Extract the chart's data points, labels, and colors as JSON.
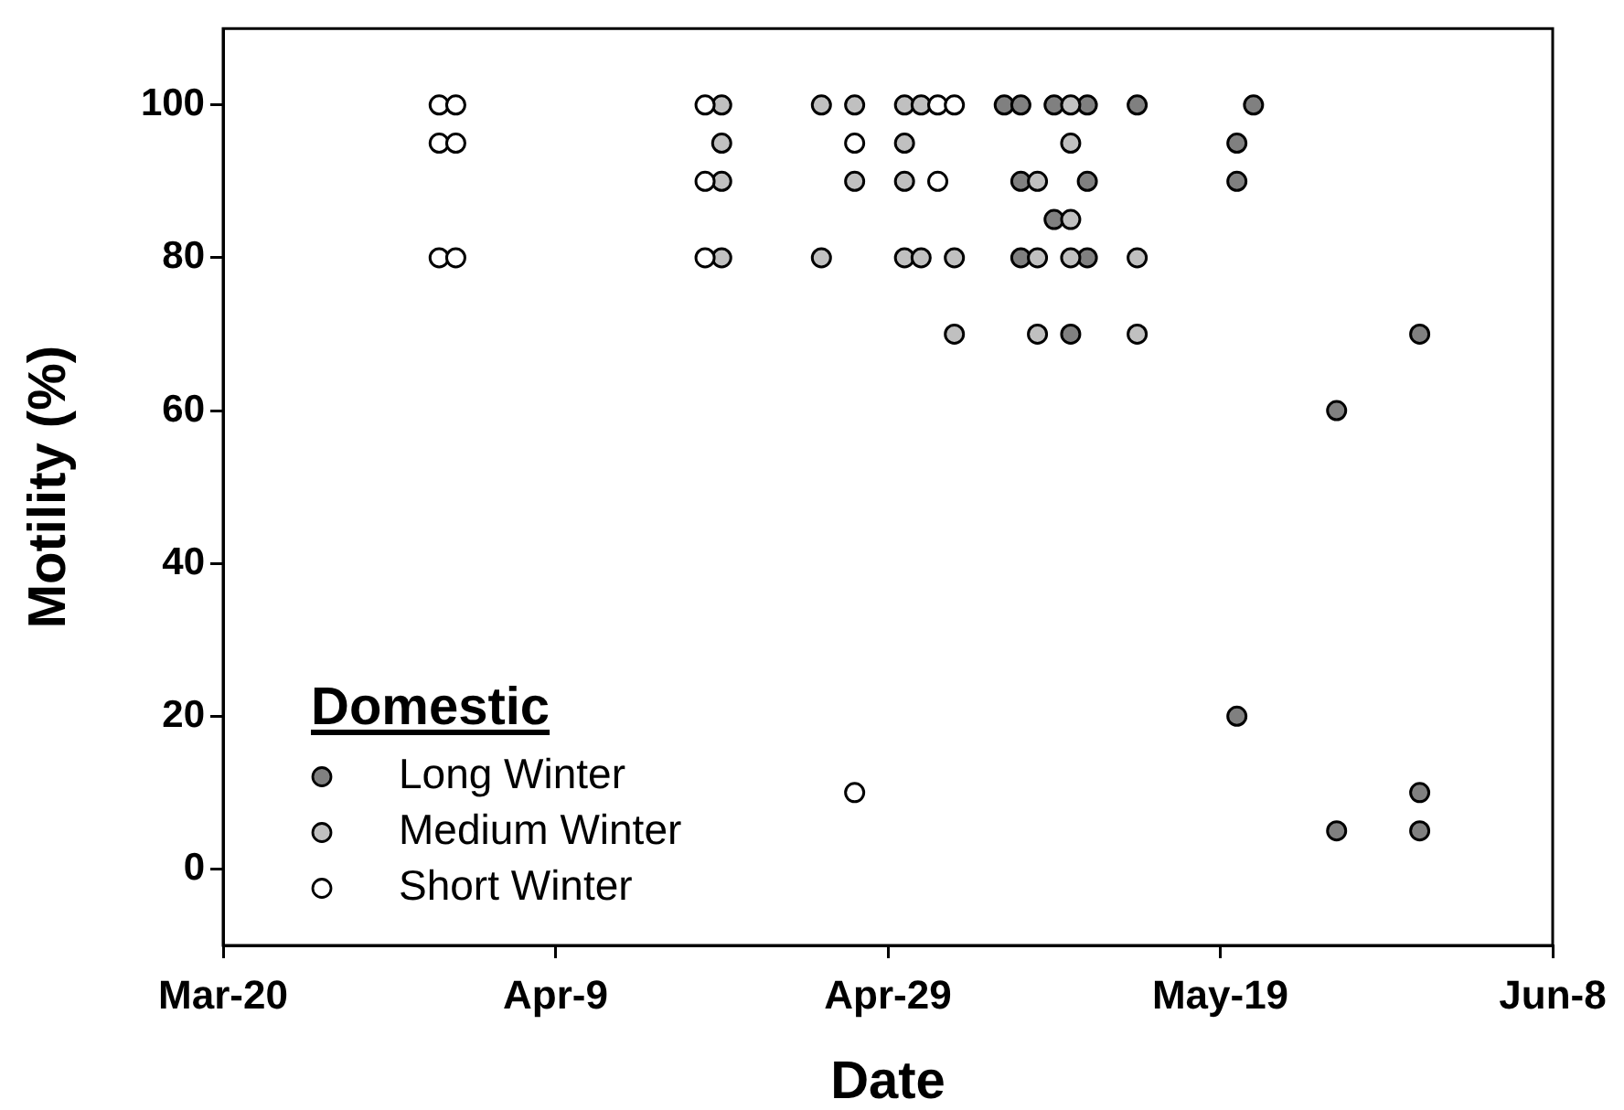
{
  "chart_data": {
    "type": "scatter",
    "xlabel": "Date",
    "ylabel": "Motility (%)",
    "legend_title": "Domestic",
    "legend": "bottom left",
    "marker": "circle",
    "xlim": [
      "--03-20",
      "--06-08"
    ],
    "xticks": [
      {
        "value": "--03-20",
        "label": "Mar-20"
      },
      {
        "value": "--04-09",
        "label": "Apr-9"
      },
      {
        "value": "--04-29",
        "label": "Apr-29"
      },
      {
        "value": "--05-19",
        "label": "May-19"
      },
      {
        "value": "--06-08",
        "label": "Jun-8"
      }
    ],
    "ylim": [
      -10,
      110
    ],
    "yticks": [
      0,
      20,
      40,
      60,
      80,
      100
    ],
    "series": [
      {
        "name": "Long Winter",
        "color": "#808080",
        "x": [
          "--05-06",
          "--05-07",
          "--05-07",
          "--05-07",
          "--05-09",
          "--05-09",
          "--05-10",
          "--05-11",
          "--05-11",
          "--05-11",
          "--05-14",
          "--05-20",
          "--05-20",
          "--05-20",
          "--05-21",
          "--05-26",
          "--05-26",
          "--05-31",
          "--05-31",
          "--05-31"
        ],
        "values": [
          100,
          100,
          90,
          80,
          100,
          85,
          70,
          100,
          90,
          80,
          100,
          95,
          90,
          20,
          100,
          60,
          5,
          70,
          10,
          5
        ]
      },
      {
        "name": "Medium Winter",
        "color": "#c0c0c0",
        "x": [
          "--04-19",
          "--04-19",
          "--04-19",
          "--04-19",
          "--04-25",
          "--04-25",
          "--04-27",
          "--04-27",
          "--04-30",
          "--04-30",
          "--04-30",
          "--04-30",
          "--05-01",
          "--05-01",
          "--05-03",
          "--05-03",
          "--05-08",
          "--05-08",
          "--05-08",
          "--05-10",
          "--05-10",
          "--05-10",
          "--05-10",
          "--05-14",
          "--05-14"
        ],
        "values": [
          100,
          95,
          90,
          80,
          100,
          80,
          100,
          90,
          100,
          95,
          90,
          80,
          100,
          80,
          80,
          70,
          90,
          80,
          70,
          100,
          95,
          85,
          80,
          80,
          70
        ]
      },
      {
        "name": "Short Winter",
        "color": "#ffffff",
        "x": [
          "--04-02",
          "--04-02",
          "--04-02",
          "--04-03",
          "--04-03",
          "--04-03",
          "--04-18",
          "--04-18",
          "--04-18",
          "--04-27",
          "--04-27",
          "--05-02",
          "--05-02",
          "--05-03"
        ],
        "values": [
          100,
          95,
          80,
          100,
          95,
          80,
          100,
          90,
          80,
          95,
          10,
          100,
          90,
          100
        ]
      }
    ]
  }
}
